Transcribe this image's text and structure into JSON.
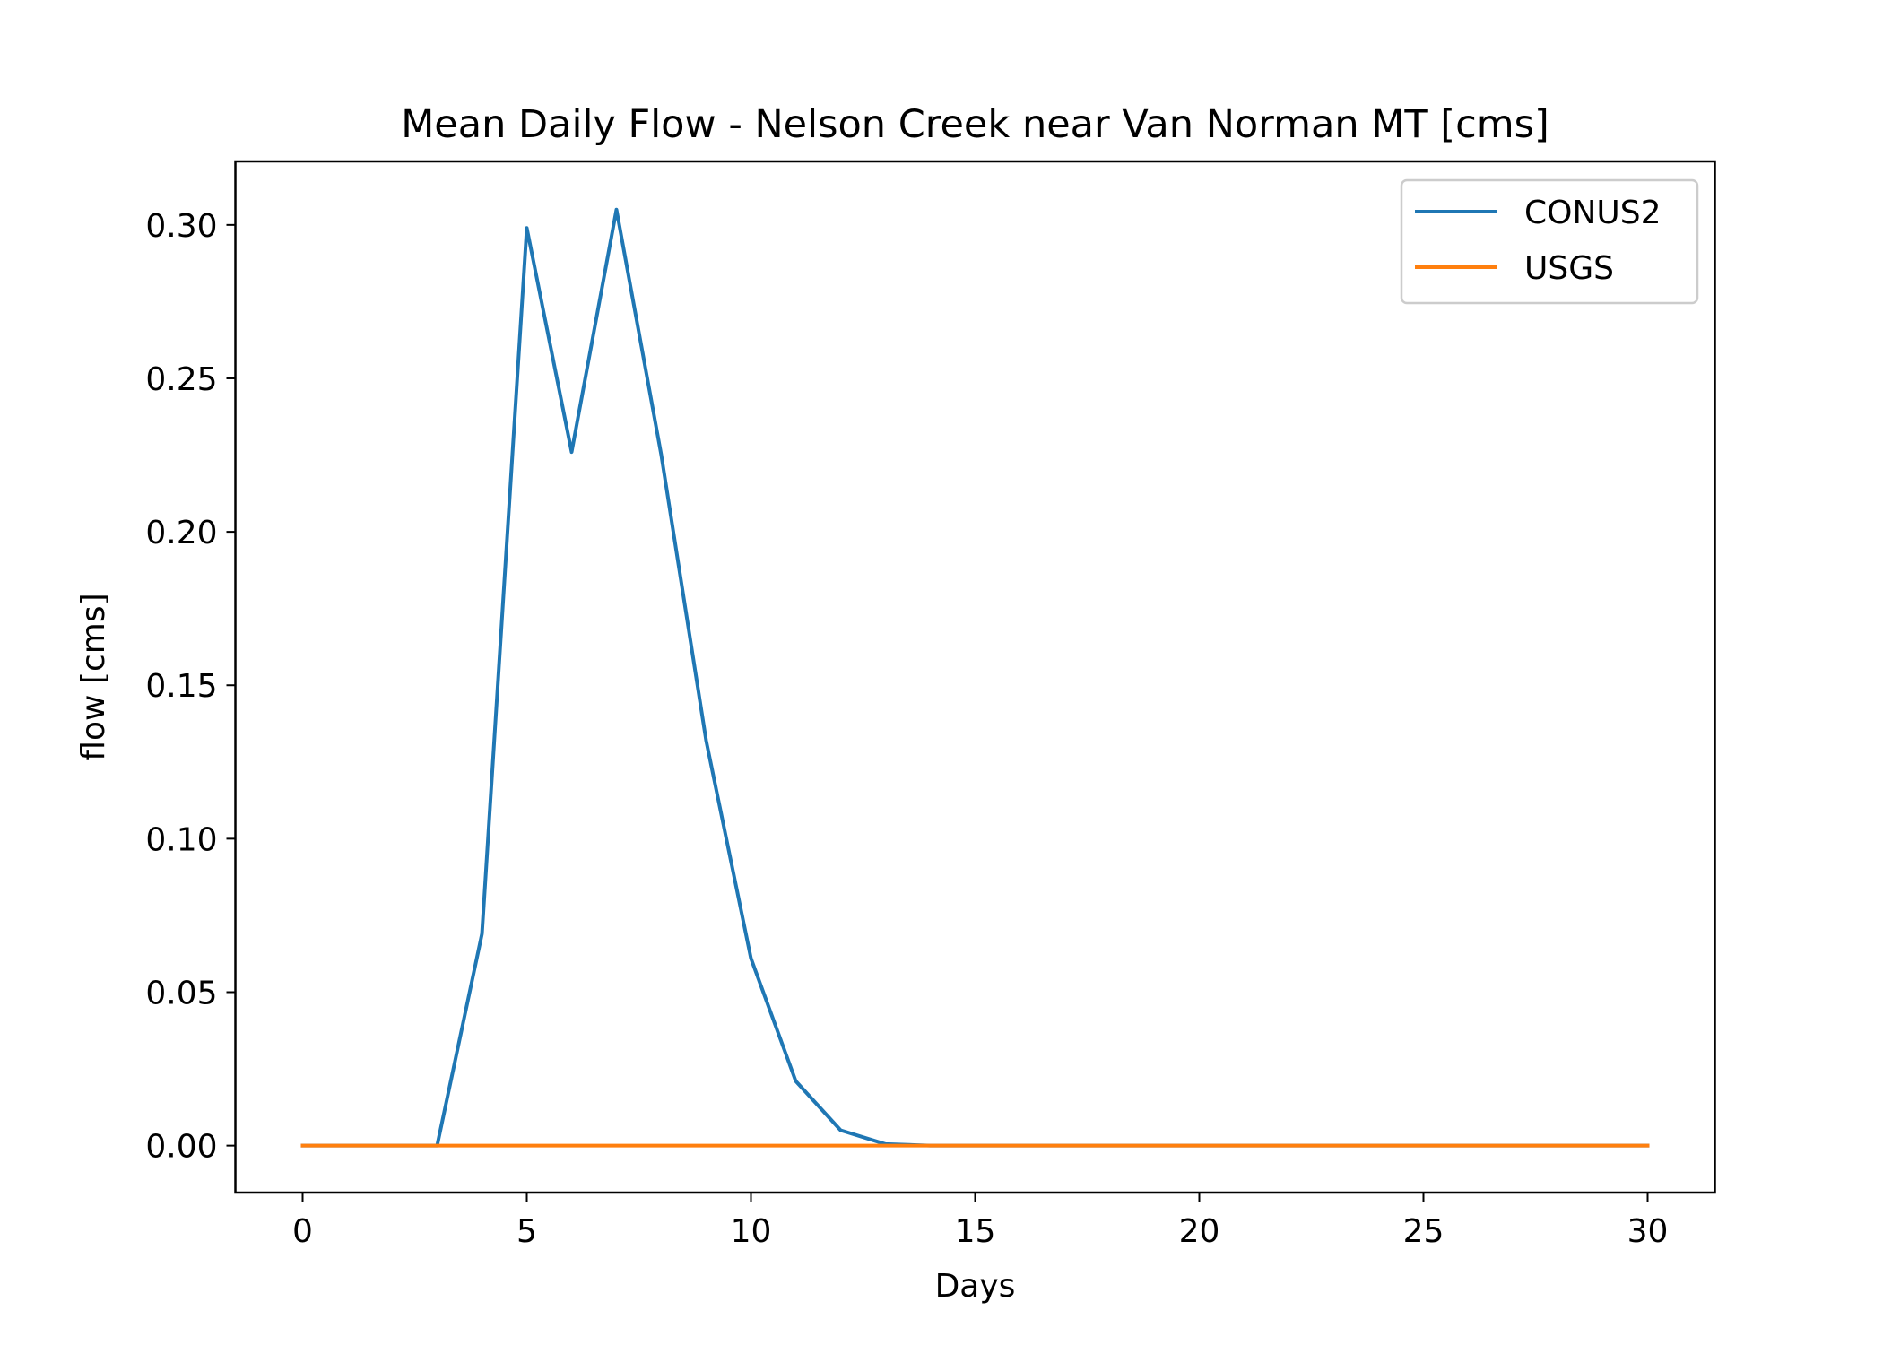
{
  "chart_data": {
    "type": "line",
    "title": "Mean Daily Flow - Nelson Creek near Van Norman MT [cms]",
    "xlabel": "Days",
    "ylabel": "flow [cms]",
    "xlim": [
      -1.5,
      31.5
    ],
    "ylim": [
      -0.0153,
      0.3207
    ],
    "xticks": [
      0,
      5,
      10,
      15,
      20,
      25,
      30
    ],
    "xtick_labels": [
      "0",
      "5",
      "10",
      "15",
      "20",
      "25",
      "30"
    ],
    "yticks": [
      0.0,
      0.05,
      0.1,
      0.15,
      0.2,
      0.25,
      0.3
    ],
    "ytick_labels": [
      "0.00",
      "0.05",
      "0.10",
      "0.15",
      "0.20",
      "0.25",
      "0.30"
    ],
    "grid": false,
    "legend_position": "upper right",
    "x": [
      0,
      1,
      2,
      3,
      4,
      5,
      6,
      7,
      8,
      9,
      10,
      11,
      12,
      13,
      14,
      15,
      16,
      17,
      18,
      19,
      20,
      21,
      22,
      23,
      24,
      25,
      26,
      27,
      28,
      29,
      30
    ],
    "series": [
      {
        "name": "CONUS2",
        "color": "#1f77b4",
        "values": [
          0,
          0,
          0,
          0,
          0.069,
          0.299,
          0.226,
          0.305,
          0.225,
          0.132,
          0.061,
          0.021,
          0.005,
          0.0005,
          0,
          0,
          0,
          0,
          0,
          0,
          0,
          0,
          0,
          0,
          0,
          0,
          0,
          0,
          0,
          0,
          0
        ]
      },
      {
        "name": "USGS",
        "color": "#ff7f0e",
        "values": [
          0,
          0,
          0,
          0,
          0,
          0,
          0,
          0,
          0,
          0,
          0,
          0,
          0,
          0,
          0,
          0,
          0,
          0,
          0,
          0,
          0,
          0,
          0,
          0,
          0,
          0,
          0,
          0,
          0,
          0,
          0
        ]
      }
    ]
  }
}
